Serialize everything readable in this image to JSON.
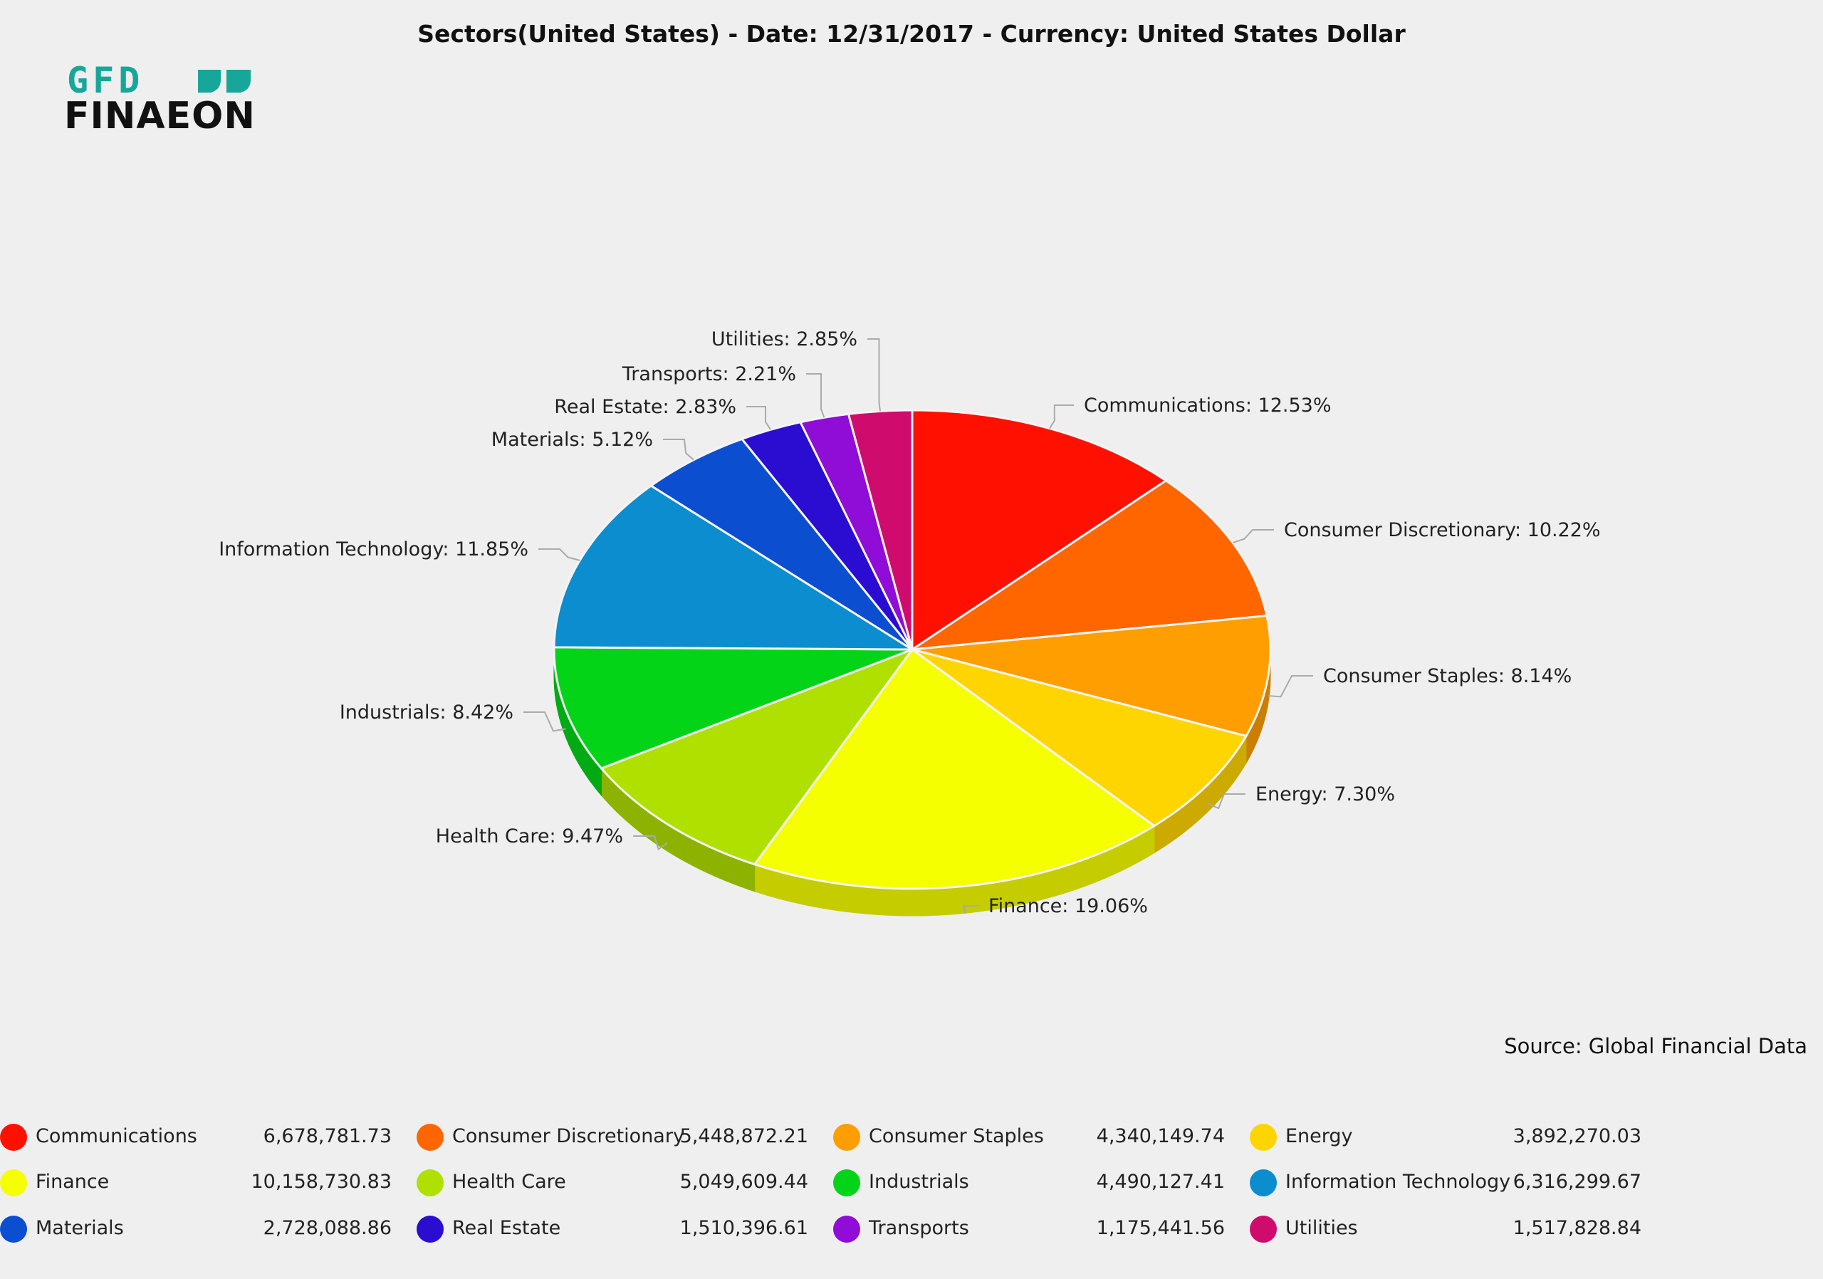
{
  "title": "Sectors(United States) -  Date: 12/31/2017 - Currency: United States Dollar",
  "logo": {
    "top_text": "GFD",
    "bottom_text": "FINAEON",
    "color_top": "#16a79a",
    "color_bottom": "#111111"
  },
  "source": "Source: Global Financial Data",
  "chart_data": {
    "type": "pie",
    "title": "Sectors(United States) -  Date: 12/31/2017 - Currency: United States Dollar",
    "slices": [
      {
        "name": "Communications",
        "value": 6678781.73,
        "value_label": "6,678,781.73",
        "percent": 12.53,
        "percent_label": "12.53%",
        "color": "#ff1000"
      },
      {
        "name": "Consumer Discretionary",
        "value": 5448872.21,
        "value_label": "5,448,872.21",
        "percent": 10.22,
        "percent_label": "10.22%",
        "color": "#ff6600"
      },
      {
        "name": "Consumer Staples",
        "value": 4340149.74,
        "value_label": "4,340,149.74",
        "percent": 8.14,
        "percent_label": "8.14%",
        "color": "#ff9e00"
      },
      {
        "name": "Energy",
        "value": 3892270.03,
        "value_label": "3,892,270.03",
        "percent": 7.3,
        "percent_label": "7.30%",
        "color": "#ffd500"
      },
      {
        "name": "Finance",
        "value": 10158730.83,
        "value_label": "10,158,730.83",
        "percent": 19.06,
        "percent_label": "19.06%",
        "color": "#f6ff00"
      },
      {
        "name": "Health Care",
        "value": 5049609.44,
        "value_label": "5,049,609.44",
        "percent": 9.47,
        "percent_label": "9.47%",
        "color": "#b0e000"
      },
      {
        "name": "Industrials",
        "value": 4490127.41,
        "value_label": "4,490,127.41",
        "percent": 8.42,
        "percent_label": "8.42%",
        "color": "#03d418"
      },
      {
        "name": "Information Technology",
        "value": 6316299.67,
        "value_label": "6,316,299.67",
        "percent": 11.85,
        "percent_label": "11.85%",
        "color": "#0b8dd0"
      },
      {
        "name": "Materials",
        "value": 2728088.86,
        "value_label": "2,728,088.86",
        "percent": 5.12,
        "percent_label": "5.12%",
        "color": "#0b4fd0"
      },
      {
        "name": "Real Estate",
        "value": 1510396.61,
        "value_label": "1,510,396.61",
        "percent": 2.83,
        "percent_label": "2.83%",
        "color": "#2a0dd0"
      },
      {
        "name": "Transports",
        "value": 1175441.56,
        "value_label": "1,175,441.56",
        "percent": 2.21,
        "percent_label": "2.21%",
        "color": "#8f0dd6"
      },
      {
        "name": "Utilities",
        "value": 1517828.84,
        "value_label": "1,517,828.84",
        "percent": 2.85,
        "percent_label": "2.85%",
        "color": "#d00b6e"
      }
    ],
    "legend_placement": "bottom"
  }
}
